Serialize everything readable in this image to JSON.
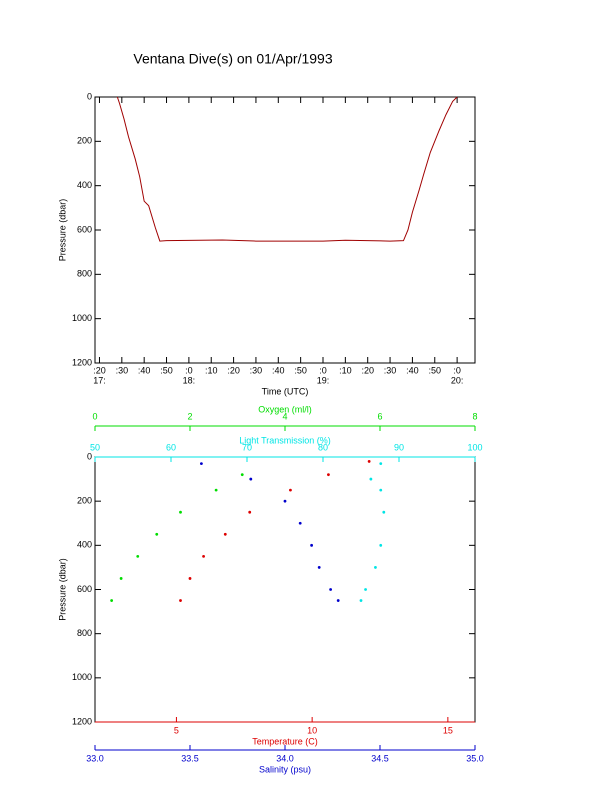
{
  "chart_data": [
    {
      "type": "line",
      "title": "Ventana Dive(s) on 01/Apr/1993",
      "xlabel": "Time (UTC)",
      "ylabel": "Pressure (dbar)",
      "xlim": [
        "17:18",
        "20:08"
      ],
      "ylim": [
        0,
        1200
      ],
      "y_inverted": true,
      "yticks": [
        0,
        200,
        400,
        600,
        800,
        1000,
        1200
      ],
      "xticks": [
        {
          "value": "17:20",
          "label": ":20"
        },
        {
          "value": "17:30",
          "label": ":30"
        },
        {
          "value": "17:40",
          "label": ":40"
        },
        {
          "value": "17:50",
          "label": ":50"
        },
        {
          "value": "18:00",
          "label": ":0"
        },
        {
          "value": "18:10",
          "label": ":10"
        },
        {
          "value": "18:20",
          "label": ":20"
        },
        {
          "value": "18:30",
          "label": ":30"
        },
        {
          "value": "18:40",
          "label": ":40"
        },
        {
          "value": "18:50",
          "label": ":50"
        },
        {
          "value": "19:00",
          "label": ":0"
        },
        {
          "value": "19:10",
          "label": ":10"
        },
        {
          "value": "19:20",
          "label": ":20"
        },
        {
          "value": "19:30",
          "label": ":30"
        },
        {
          "value": "19:40",
          "label": ":40"
        },
        {
          "value": "19:50",
          "label": ":50"
        },
        {
          "value": "20:00",
          "label": ":0"
        }
      ],
      "xtick_hours": [
        {
          "value": "17:20",
          "label": "17:"
        },
        {
          "value": "18:00",
          "label": "18:"
        },
        {
          "value": "19:00",
          "label": "19:"
        },
        {
          "value": "20:00",
          "label": "20:"
        }
      ],
      "series": [
        {
          "color": "#a00000",
          "x": [
            "17:28",
            "17:29",
            "17:31",
            "17:33",
            "17:36",
            "17:38",
            "17:40",
            "17:42",
            "17:45",
            "17:47",
            "17:50",
            "18:15",
            "18:30",
            "19:00",
            "19:10",
            "19:30",
            "19:36",
            "19:38",
            "19:40",
            "19:43",
            "19:45",
            "19:48",
            "19:52",
            "19:55",
            "19:58",
            "20:00"
          ],
          "values": [
            0,
            30,
            100,
            180,
            280,
            360,
            470,
            490,
            590,
            650,
            648,
            645,
            650,
            650,
            646,
            650,
            648,
            600,
            520,
            420,
            350,
            250,
            150,
            80,
            20,
            0
          ]
        }
      ]
    },
    {
      "type": "scatter",
      "ylabel": "Pressure (dbar)",
      "ylim": [
        0,
        1200
      ],
      "y_inverted": true,
      "yticks": [
        0,
        200,
        400,
        600,
        800,
        1000,
        1200
      ],
      "axes": [
        {
          "label": "Oxygen (ml/l)",
          "position": "top",
          "color": "#00dd00",
          "lim": [
            0,
            8
          ],
          "ticks": [
            0,
            2,
            4,
            6,
            8
          ],
          "x": [
            3.1,
            2.55,
            1.8,
            1.3,
            0.9,
            0.55,
            0.35
          ],
          "pressure": [
            80,
            150,
            250,
            350,
            450,
            550,
            650
          ]
        },
        {
          "label": "Light Transmission (%)",
          "position": "top",
          "color": "#00e5e5",
          "lim": [
            50,
            100
          ],
          "ticks": [
            50,
            60,
            70,
            80,
            90,
            100
          ],
          "x": [
            87.6,
            86.3,
            87.6,
            88,
            87.6,
            86.9,
            85.6,
            85
          ],
          "pressure": [
            30,
            100,
            150,
            250,
            400,
            500,
            600,
            650
          ]
        },
        {
          "label": "Temperature (C)",
          "position": "bottom",
          "color": "#dd0000",
          "lim": [
            2,
            16
          ],
          "ticks": [
            5,
            10,
            15
          ],
          "x": [
            12.1,
            10.6,
            9.2,
            7.7,
            6.8,
            6.0,
            5.5,
            5.15
          ],
          "pressure": [
            20,
            80,
            150,
            250,
            350,
            450,
            550,
            650
          ]
        },
        {
          "label": "Salinity (psu)",
          "position": "bottom",
          "color": "#0000cc",
          "lim": [
            33,
            35
          ],
          "ticks": [
            {
              "value": 33,
              "label": "33.0"
            },
            {
              "value": 33.5,
              "label": "33.5"
            },
            {
              "value": 34,
              "label": "34.0"
            },
            {
              "value": 34.5,
              "label": "34.5"
            },
            {
              "value": 35,
              "label": "35.0"
            }
          ],
          "x": [
            33.56,
            33.82,
            34.0,
            34.08,
            34.14,
            34.18,
            34.24,
            34.28
          ],
          "pressure": [
            30,
            100,
            200,
            300,
            400,
            500,
            600,
            650
          ]
        }
      ]
    }
  ]
}
